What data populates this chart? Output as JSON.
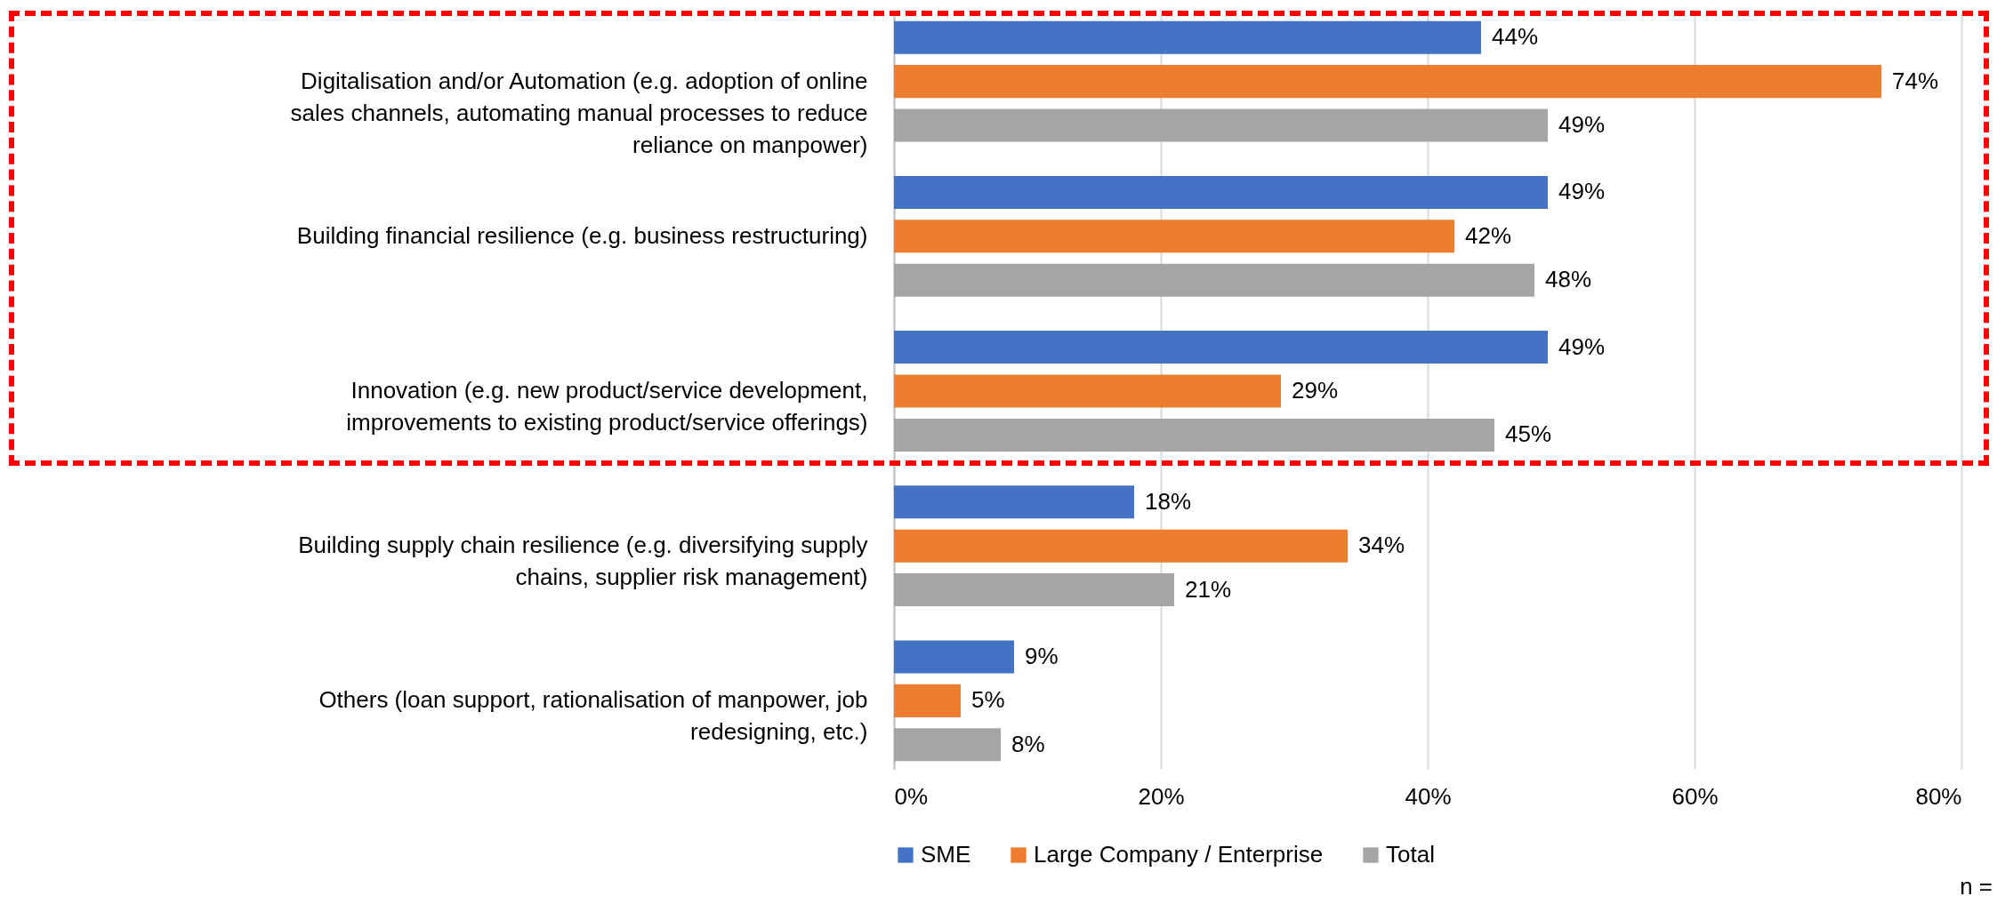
{
  "chart_data": {
    "type": "bar",
    "orientation": "horizontal",
    "categories": [
      "Digitalisation and/or Automation (e.g. adoption of online sales channels, automating manual processes to reduce reliance on manpower)",
      "Building financial resilience (e.g. business restructuring)",
      "Innovation (e.g. new product/service development, improvements to existing product/service offerings)",
      "Building supply chain resilience (e.g. diversifying supply chains, supplier risk management)",
      "Others (loan support, rationalisation of manpower, job redesigning, etc.)"
    ],
    "series": [
      {
        "name": "SME",
        "color": "#4472c4",
        "values": [
          44,
          49,
          49,
          18,
          9
        ],
        "value_labels": [
          "44%",
          "49%",
          "49%",
          "18%",
          "9%"
        ]
      },
      {
        "name": "Large Company / Enterprise",
        "color": "#ed7d31",
        "values": [
          74,
          42,
          29,
          34,
          5
        ],
        "value_labels": [
          "74%",
          "42%",
          "29%",
          "34%",
          "5%"
        ]
      },
      {
        "name": "Total",
        "color": "#a5a5a5",
        "values": [
          49,
          48,
          45,
          21,
          8
        ],
        "value_labels": [
          "49%",
          "48%",
          "45%",
          "21%",
          "8%"
        ]
      }
    ],
    "xlim": [
      0,
      80
    ],
    "xticks": [
      {
        "value": 0,
        "label": "0%"
      },
      {
        "value": 20,
        "label": "20%"
      },
      {
        "value": 40,
        "label": "40%"
      },
      {
        "value": 60,
        "label": "60%"
      },
      {
        "value": 80,
        "label": "80%"
      }
    ],
    "grid": "x",
    "legend": "bottom",
    "annotations": [
      "n ="
    ]
  }
}
